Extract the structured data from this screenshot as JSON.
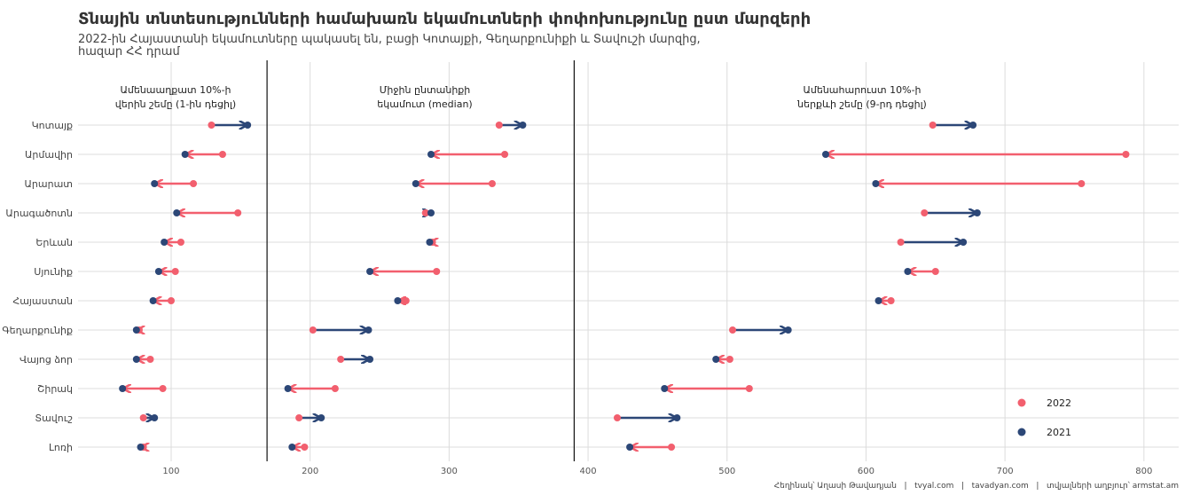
{
  "chart_data": {
    "type": "dumbbell-arrow",
    "title": "Տնային տնտեսությունների համախառն եկամուտների փոփոխությունը ըստ մարզերի",
    "subtitle_lines": [
      "2022-ին Հայաստանի եկամուտները պակասել են, բացի Կոտայքի, Գեղարքունիքի և Տավուշի մարզից,",
      "հազար ՀՀ դրամ"
    ],
    "xticks": [
      100,
      200,
      300,
      400,
      500,
      600,
      700,
      800
    ],
    "xlim": [
      33,
      825
    ],
    "categories": [
      "Կոտայք",
      "Արմավիր",
      "Արարատ",
      "Արագածոտն",
      "Երևան",
      "Սյունիք",
      "Հայաստան",
      "Գեղարքունիք",
      "Վայոց ձոր",
      "Շիրակ",
      "Տավուշ",
      "Լոռի"
    ],
    "colors": {
      "2022": "#f25f6e",
      "2021": "#2c4777"
    },
    "legend": {
      "position": "bottom-right",
      "entries": [
        "2022",
        "2021"
      ]
    },
    "caption": "Հեղինակ՝ Աղասի Թավադյան   |   tvyal.com   |   tavadyan.com   |   տվյալների աղբյուր՝ armstat.am",
    "panels": [
      {
        "label_lines": [
          "Ամենաաղքատ 10%-ի",
          "վերին շեմը (1-ին դեցիլ)"
        ],
        "range": [
          33,
          169
        ],
        "values_2021": [
          155,
          110,
          88,
          104,
          95,
          91,
          87,
          75,
          75,
          65,
          88,
          78
        ],
        "values_2022": [
          129,
          137,
          116,
          148,
          107,
          103,
          100,
          77,
          85,
          94,
          80,
          80
        ]
      },
      {
        "label_lines": [
          "Միջին ընտանիքի",
          "եկամուտ (median)"
        ],
        "range": [
          169,
          390
        ],
        "values_2021": [
          353,
          287,
          276,
          287,
          286,
          243,
          263,
          242,
          243,
          184,
          208,
          187
        ],
        "values_2022": [
          336,
          340,
          331,
          283,
          288,
          291,
          269,
          202,
          222,
          218,
          192,
          196
        ]
      },
      {
        "label_lines": [
          "Ամենահարուստ 10%-ի",
          "ներքևի շեմը (9-րդ դեցիլ)"
        ],
        "range": [
          390,
          825
        ],
        "values_2021": [
          677,
          571,
          607,
          680,
          670,
          630,
          609,
          544,
          492,
          455,
          464,
          430
        ],
        "values_2022": [
          648,
          787,
          755,
          642,
          625,
          650,
          618,
          504,
          502,
          516,
          421,
          460
        ]
      }
    ]
  }
}
